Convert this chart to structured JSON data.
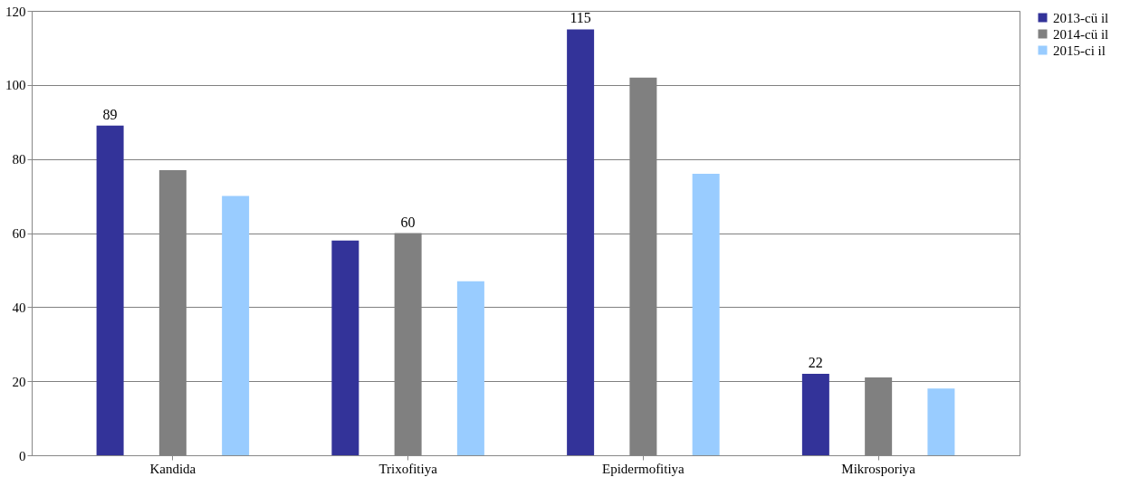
{
  "chart_data": {
    "type": "bar",
    "categories": [
      "Kandida",
      "Trixofitiya",
      "Epidermofitiya",
      "Mikrosporiya"
    ],
    "series": [
      {
        "name": "2013-cü il",
        "color": "#333399",
        "values": [
          89,
          58,
          115,
          22
        ],
        "value_labels": [
          "89",
          null,
          "115",
          "22"
        ]
      },
      {
        "name": "2014-cü il",
        "color": "#808080",
        "values": [
          77,
          60,
          102,
          21
        ],
        "value_labels": [
          null,
          "60",
          null,
          null
        ]
      },
      {
        "name": "2015-ci il",
        "color": "#99ccff",
        "values": [
          70,
          47,
          76,
          18
        ],
        "value_labels": [
          null,
          null,
          null,
          null
        ]
      }
    ],
    "ylim": [
      0,
      120
    ],
    "yticks": [
      0,
      20,
      40,
      60,
      80,
      100,
      120
    ],
    "grid": "y",
    "legend": "right"
  }
}
